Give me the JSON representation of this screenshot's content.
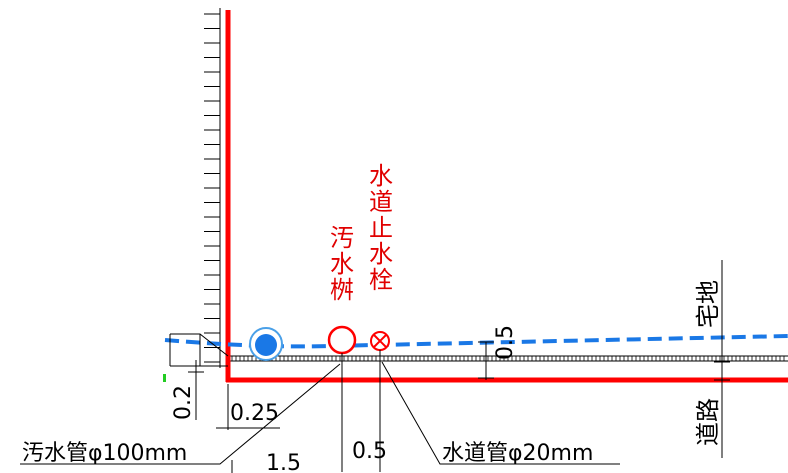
{
  "labels": {
    "sewer_basin": [
      "汚",
      "水",
      "桝"
    ],
    "water_stop_valve": [
      "水",
      "道",
      "止",
      "水",
      "栓"
    ],
    "sewer_pipe": "汚水管φ100mm",
    "water_pipe": "水道管φ20mm",
    "residential_land": "宅地",
    "road": "道路"
  },
  "dimensions": {
    "depth_left": "0.2",
    "offset_025": "0.25",
    "dist_15": "1.5",
    "dist_05_bottom": "0.5",
    "dist_05_right": "0.5"
  },
  "colors": {
    "boundary_red": "#ff0000",
    "pipe_blue": "#1a78e6",
    "line_black": "#000000",
    "label_red": "#e00000"
  },
  "icons": {
    "sewer_basin_symbol": "red-circle-icon",
    "water_valve_symbol": "red-circle-x-icon",
    "sewer_manhole_symbol": "blue-manhole-icon"
  }
}
